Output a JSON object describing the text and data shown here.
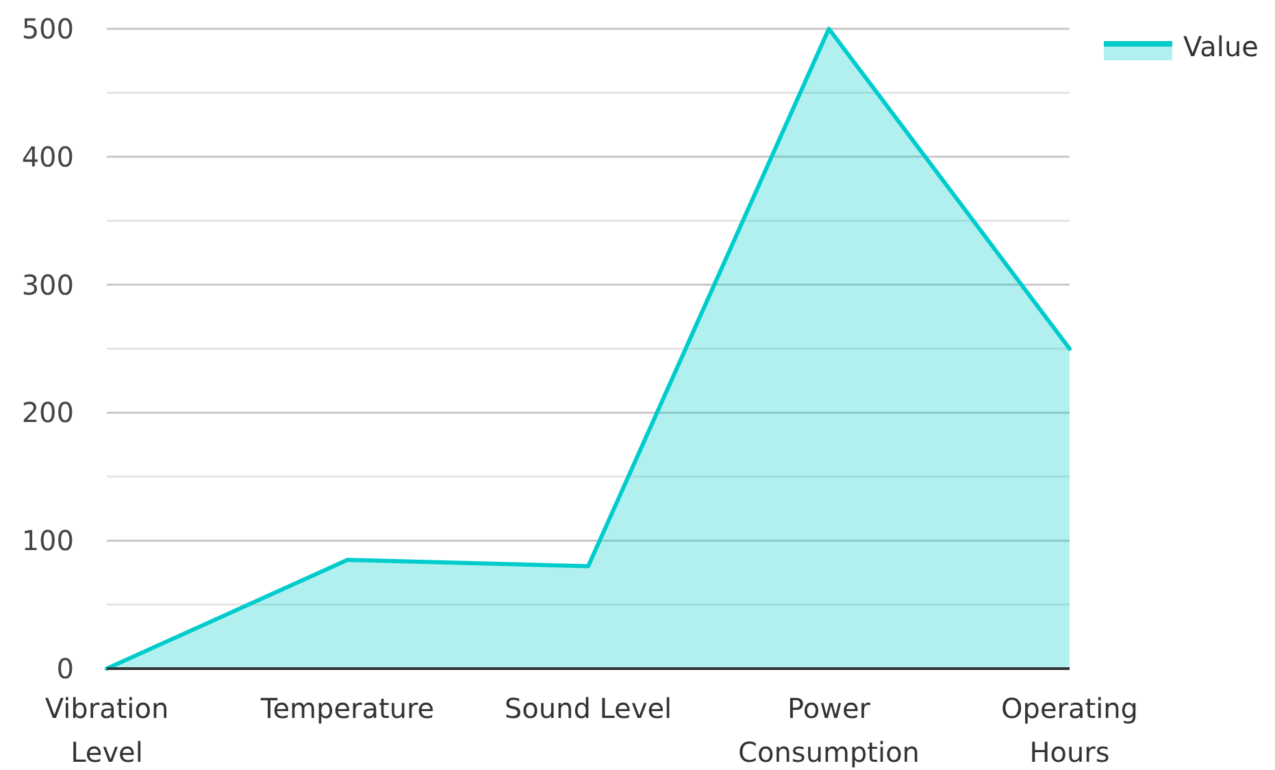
{
  "chart_data": {
    "type": "area",
    "categories": [
      "Vibration Level",
      "Temperature",
      "Sound Level",
      "Power Consumption",
      "Operating Hours"
    ],
    "series": [
      {
        "name": "Value",
        "color": "#00cccc",
        "values": [
          0,
          85,
          80,
          500,
          250
        ]
      }
    ],
    "ylim": [
      0,
      500
    ],
    "yticks": [
      0,
      {
        "value": 50,
        "label": null
      },
      100,
      {
        "value": 150,
        "label": null
      },
      200,
      {
        "value": 250,
        "label": null
      },
      300,
      {
        "value": 350,
        "label": null
      },
      400,
      {
        "value": 450,
        "label": null
      },
      500
    ],
    "grid": "y",
    "legend": "top right"
  }
}
